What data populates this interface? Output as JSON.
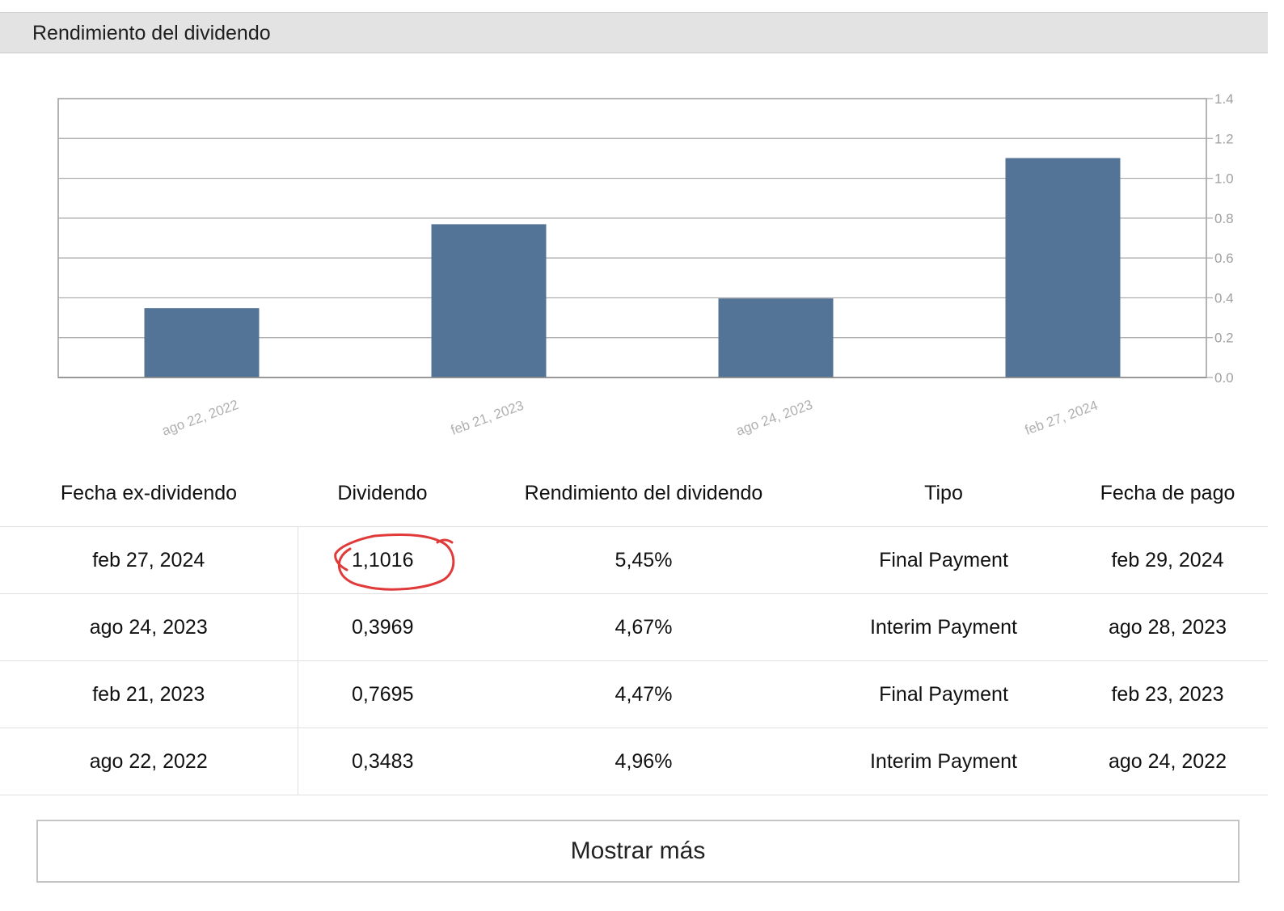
{
  "header": {
    "title": "Rendimiento del dividendo"
  },
  "chart_data": {
    "type": "bar",
    "categories": [
      "ago 22, 2022",
      "feb 21, 2023",
      "ago 24, 2023",
      "feb 27, 2024"
    ],
    "values": [
      0.3483,
      0.7695,
      0.3969,
      1.1016
    ],
    "y_ticks": [
      "0.0",
      "0.2",
      "0.4",
      "0.6",
      "0.8",
      "1.0",
      "1.2",
      "1.4"
    ],
    "ylim": [
      0,
      1.4
    ],
    "y_axis_side": "right",
    "grid": true,
    "bar_color": "#547497"
  },
  "table": {
    "headers": [
      "Fecha ex-dividendo",
      "Dividendo",
      "Rendimiento del dividendo",
      "Tipo",
      "Fecha de pago"
    ],
    "rows": [
      [
        "feb 27, 2024",
        "1,1016",
        "5,45%",
        "Final Payment",
        "feb 29, 2024"
      ],
      [
        "ago 24, 2023",
        "0,3969",
        "4,67%",
        "Interim Payment",
        "ago 28, 2023"
      ],
      [
        "feb 21, 2023",
        "0,7695",
        "4,47%",
        "Final Payment",
        "feb 23, 2023"
      ],
      [
        "ago 22, 2022",
        "0,3483",
        "4,96%",
        "Interim Payment",
        "ago 24, 2022"
      ]
    ]
  },
  "annotation": {
    "color": "#e03a3a"
  },
  "more_button": {
    "label": "Mostrar más"
  }
}
